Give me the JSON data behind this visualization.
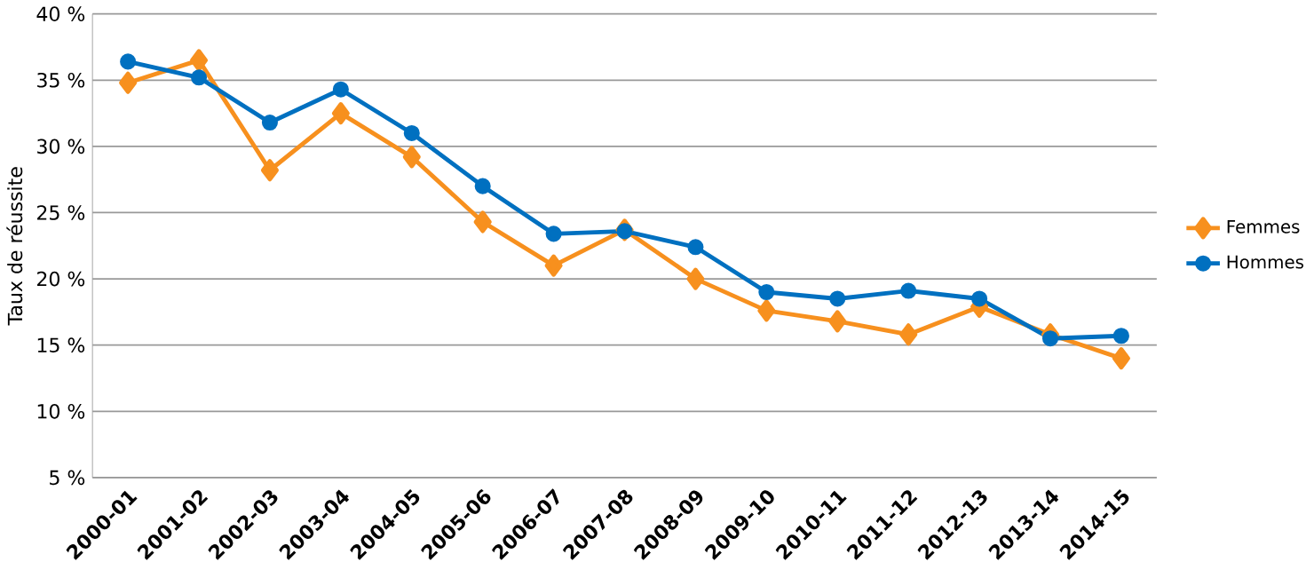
{
  "chart_data": {
    "type": "line",
    "ylabel": "Taux de réussite",
    "categories": [
      "2000-01",
      "2001-02",
      "2002-03",
      "2003-04",
      "2004-05",
      "2005-06",
      "2006-07",
      "2007-08",
      "2008-09",
      "2009-10",
      "2010-11",
      "2011-12",
      "2012-13",
      "2013-14",
      "2014-15"
    ],
    "series": [
      {
        "name": "Femmes",
        "color": "#f7901e",
        "marker": "diamond",
        "values": [
          34.8,
          36.5,
          28.2,
          32.5,
          29.2,
          24.3,
          21.0,
          23.7,
          20.0,
          17.6,
          16.8,
          15.8,
          17.9,
          15.8,
          14.0
        ]
      },
      {
        "name": "Hommes",
        "color": "#0070c0",
        "marker": "circle",
        "values": [
          36.4,
          35.2,
          31.8,
          34.3,
          31.0,
          27.0,
          23.4,
          23.6,
          22.4,
          19.0,
          18.5,
          19.1,
          18.5,
          15.5,
          15.7
        ]
      }
    ],
    "ylim": [
      5,
      40
    ],
    "yticks": [
      {
        "value": 5,
        "label": "5 %"
      },
      {
        "value": 10,
        "label": "10 %"
      },
      {
        "value": 15,
        "label": "15 %"
      },
      {
        "value": 20,
        "label": "20 %"
      },
      {
        "value": 25,
        "label": "25 %"
      },
      {
        "value": 30,
        "label": "30 %"
      },
      {
        "value": 35,
        "label": "35 %"
      },
      {
        "value": 40,
        "label": "40 %"
      }
    ],
    "grid": "y",
    "legend": "right",
    "line_style": "solid"
  }
}
